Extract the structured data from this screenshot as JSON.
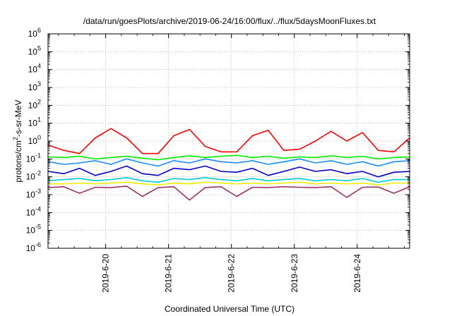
{
  "chart_data": {
    "type": "line",
    "title": "/data/run/goesPlots/archive/2019-06-24/16:00/flux/../flux/5daysMoonFluxes.txt",
    "xlabel": "Coordinated Universal Time (UTC)",
    "ylabel": {
      "pre": "protons/cm",
      "sup": "2",
      "post": "-s-sr-MeV"
    },
    "yscale": "log",
    "ylim": [
      1e-06,
      1000000.0
    ],
    "xlim": [
      "2019-06-19T02:00",
      "2019-06-24T20:00"
    ],
    "grid": true,
    "legend": "none",
    "yticks": [
      {
        "value": 1e-06,
        "base": "10",
        "exp": "-6"
      },
      {
        "value": 1e-05,
        "base": "10",
        "exp": "-5"
      },
      {
        "value": 0.0001,
        "base": "10",
        "exp": "-4"
      },
      {
        "value": 0.001,
        "base": "10",
        "exp": "-3"
      },
      {
        "value": 0.01,
        "base": "10",
        "exp": "-2"
      },
      {
        "value": 0.1,
        "base": "10",
        "exp": "-1"
      },
      {
        "value": 1.0,
        "base": "10",
        "exp": "0"
      },
      {
        "value": 10.0,
        "base": "10",
        "exp": "1"
      },
      {
        "value": 100.0,
        "base": "10",
        "exp": "2"
      },
      {
        "value": 1000.0,
        "base": "10",
        "exp": "3"
      },
      {
        "value": 10000.0,
        "base": "10",
        "exp": "4"
      },
      {
        "value": 100000.0,
        "base": "10",
        "exp": "5"
      },
      {
        "value": 1000000.0,
        "base": "10",
        "exp": "6"
      }
    ],
    "xticks": [
      {
        "t": "2019-06-20T00:00",
        "label": "2019-6-20"
      },
      {
        "t": "2019-06-21T00:00",
        "label": "2019-6-21"
      },
      {
        "t": "2019-06-22T00:00",
        "label": "2019-6-22"
      },
      {
        "t": "2019-06-23T00:00",
        "label": "2019-6-23"
      },
      {
        "t": "2019-06-24T00:00",
        "label": "2019-6-24"
      }
    ],
    "x": [
      "2019-06-19T02:00",
      "2019-06-19T08:00",
      "2019-06-19T14:00",
      "2019-06-19T20:00",
      "2019-06-20T02:00",
      "2019-06-20T08:00",
      "2019-06-20T14:00",
      "2019-06-20T20:00",
      "2019-06-21T02:00",
      "2019-06-21T08:00",
      "2019-06-21T14:00",
      "2019-06-21T20:00",
      "2019-06-22T02:00",
      "2019-06-22T08:00",
      "2019-06-22T14:00",
      "2019-06-22T20:00",
      "2019-06-23T02:00",
      "2019-06-23T08:00",
      "2019-06-23T14:00",
      "2019-06-23T20:00",
      "2019-06-24T02:00",
      "2019-06-24T08:00",
      "2019-06-24T14:00",
      "2019-06-24T20:00"
    ],
    "series": [
      {
        "color": "#ff0000",
        "values": [
          0.6,
          0.3,
          0.2,
          1.5,
          5.0,
          1.5,
          0.2,
          0.2,
          2.0,
          4.5,
          0.5,
          0.25,
          0.25,
          2.0,
          4.0,
          0.3,
          0.35,
          1.0,
          3.5,
          1.0,
          3.0,
          0.3,
          0.25,
          1.5
        ]
      },
      {
        "color": "#00ee00",
        "values": [
          0.13,
          0.12,
          0.14,
          0.1,
          0.12,
          0.14,
          0.11,
          0.09,
          0.12,
          0.15,
          0.12,
          0.14,
          0.16,
          0.12,
          0.14,
          0.11,
          0.13,
          0.12,
          0.15,
          0.12,
          0.14,
          0.1,
          0.12,
          0.13
        ]
      },
      {
        "color": "#1a8cff",
        "values": [
          0.07,
          0.05,
          0.06,
          0.08,
          0.05,
          0.1,
          0.06,
          0.04,
          0.08,
          0.06,
          0.1,
          0.07,
          0.06,
          0.08,
          0.05,
          0.07,
          0.1,
          0.06,
          0.08,
          0.05,
          0.07,
          0.04,
          0.07,
          0.08
        ]
      },
      {
        "color": "#0000cc",
        "values": [
          0.02,
          0.015,
          0.03,
          0.012,
          0.02,
          0.04,
          0.015,
          0.012,
          0.03,
          0.025,
          0.04,
          0.02,
          0.018,
          0.03,
          0.012,
          0.02,
          0.035,
          0.02,
          0.025,
          0.015,
          0.02,
          0.01,
          0.018,
          0.02
        ]
      },
      {
        "color": "#00cccc",
        "values": [
          0.006,
          0.007,
          0.008,
          0.006,
          0.007,
          0.009,
          0.006,
          0.005,
          0.008,
          0.007,
          0.009,
          0.007,
          0.006,
          0.008,
          0.006,
          0.007,
          0.008,
          0.006,
          0.007,
          0.006,
          0.008,
          0.005,
          0.007,
          0.007
        ]
      },
      {
        "color": "#eeee00",
        "values": [
          0.004,
          0.004,
          0.0045,
          0.004,
          0.0045,
          0.005,
          0.004,
          0.0035,
          0.0045,
          0.004,
          0.005,
          0.0045,
          0.004,
          0.0045,
          0.004,
          0.0045,
          0.005,
          0.004,
          0.0045,
          0.004,
          0.0045,
          0.0035,
          0.0045,
          0.0045
        ]
      },
      {
        "color": "#993366",
        "values": [
          0.0025,
          0.0028,
          0.0012,
          0.0026,
          0.0025,
          0.003,
          0.0008,
          0.0025,
          0.0028,
          0.0005,
          0.0025,
          0.0028,
          0.0008,
          0.0026,
          0.0025,
          0.0028,
          0.0026,
          0.0025,
          0.0028,
          0.0007,
          0.0026,
          0.0027,
          0.0012,
          0.0028
        ]
      }
    ]
  }
}
